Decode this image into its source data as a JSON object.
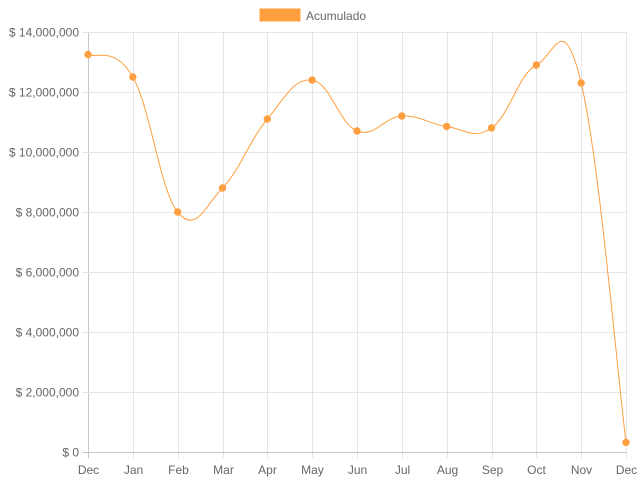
{
  "chart_data": {
    "type": "line",
    "categories": [
      "Dec",
      "Jan",
      "Feb",
      "Mar",
      "Apr",
      "May",
      "Jun",
      "Jul",
      "Aug",
      "Sep",
      "Oct",
      "Nov",
      "Dec"
    ],
    "series": [
      {
        "name": "Acumulado",
        "color": "#ff9f40",
        "values": [
          13250000,
          12500000,
          8000000,
          8800000,
          11100000,
          12400000,
          10700000,
          11200000,
          10850000,
          10800000,
          12900000,
          12300000,
          320000
        ]
      }
    ],
    "ylim": [
      0,
      14000000
    ],
    "y_ticks": [
      0,
      2000000,
      4000000,
      6000000,
      8000000,
      10000000,
      12000000,
      14000000
    ],
    "y_tick_labels": [
      "$ 0",
      "$ 2,000,000",
      "$ 4,000,000",
      "$ 6,000,000",
      "$ 8,000,000",
      "$ 10,000,000",
      "$ 12,000,000",
      "$ 14,000,000"
    ],
    "grid": true,
    "legend_position": "top",
    "title": "",
    "xlabel": "",
    "ylabel": ""
  }
}
